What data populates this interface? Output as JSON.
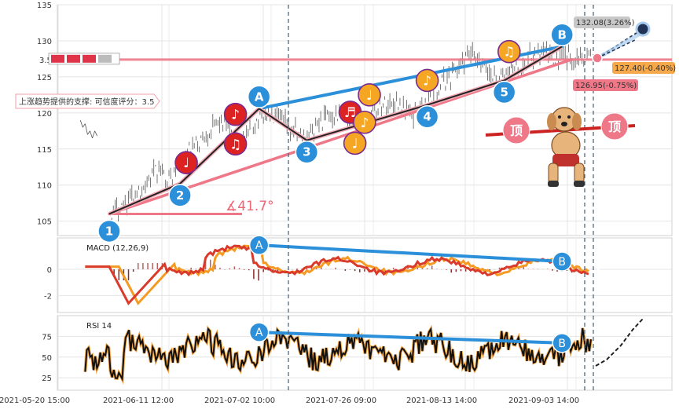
{
  "chart_data": {
    "type": "line",
    "x_tick_labels": [
      "2021-05-20 15:00",
      "2021-06-11 12:00",
      "2021-07-02 10:00",
      "2021-07-26 09:00",
      "2021-08-13 14:00",
      "2021-09-03 14:00"
    ],
    "price_panel": {
      "y_ticks": [
        105,
        110,
        115,
        120,
        125,
        130,
        135
      ],
      "ylim": [
        103,
        135
      ],
      "price_path": [
        [
          0,
          106
        ],
        [
          0.03,
          107.5
        ],
        [
          0.06,
          109
        ],
        [
          0.08,
          110.5
        ],
        [
          0.1,
          112
        ],
        [
          0.13,
          111
        ],
        [
          0.16,
          114
        ],
        [
          0.2,
          117
        ],
        [
          0.23,
          119
        ],
        [
          0.25,
          117
        ],
        [
          0.28,
          116
        ],
        [
          0.3,
          118.5
        ],
        [
          0.32,
          120
        ],
        [
          0.35,
          119
        ],
        [
          0.38,
          117.5
        ],
        [
          0.41,
          116.5
        ],
        [
          0.44,
          119
        ],
        [
          0.47,
          120
        ],
        [
          0.5,
          118
        ],
        [
          0.53,
          119
        ],
        [
          0.56,
          121
        ],
        [
          0.6,
          121.5
        ],
        [
          0.63,
          119.5
        ],
        [
          0.66,
          121.5
        ],
        [
          0.69,
          124
        ],
        [
          0.72,
          126
        ],
        [
          0.75,
          128
        ],
        [
          0.78,
          126
        ],
        [
          0.81,
          124.5
        ],
        [
          0.84,
          126.5
        ],
        [
          0.87,
          127.5
        ],
        [
          0.9,
          128.5
        ],
        [
          0.93,
          127.5
        ],
        [
          1,
          128
        ]
      ],
      "early_fragment": [
        [
          -0.06,
          119
        ],
        [
          -0.055,
          118
        ],
        [
          -0.05,
          118.5
        ],
        [
          -0.045,
          117
        ],
        [
          -0.04,
          117.5
        ],
        [
          -0.035,
          116.5
        ],
        [
          -0.03,
          117.5
        ],
        [
          -0.025,
          116.8
        ]
      ],
      "zigzag": [
        {
          "label": "1",
          "x": 0,
          "y": 106,
          "color": "#2b8fd9"
        },
        {
          "label": "2",
          "x": 0.147,
          "y": 110.2,
          "color": "#2b8fd9"
        },
        {
          "label": "A",
          "x": 0.311,
          "y": 120.6,
          "color": "#2b8fd9"
        },
        {
          "label": "3",
          "x": 0.41,
          "y": 116.2,
          "color": "#2b8fd9"
        },
        {
          "label": "4",
          "x": 0.66,
          "y": 121.1,
          "color": "#2b8fd9"
        },
        {
          "label": "5",
          "x": 0.82,
          "y": 124.5,
          "color": "#2b8fd9"
        },
        {
          "label": "B",
          "x": 0.94,
          "y": 129.2,
          "color": "#2b8fd9"
        }
      ],
      "support_lines": [
        {
          "from": [
            0,
            106
          ],
          "to": [
            0.96,
            127.4
          ],
          "color": "#ee7788"
        },
        {
          "from": [
            0.311,
            120.6
          ],
          "to": [
            0.94,
            129.2
          ],
          "color": "#2b8fd9"
        }
      ],
      "horizontal_level": 127.4,
      "horizontal_label": "3.5",
      "music_markers": [
        {
          "x": 0.16,
          "y": 113.1,
          "color": "#dd2222",
          "glyph": "♩"
        },
        {
          "x": 0.262,
          "y": 119.8,
          "color": "#dd2222",
          "glyph": "♪"
        },
        {
          "x": 0.262,
          "y": 115.7,
          "color": "#dd2222",
          "glyph": "♫"
        },
        {
          "x": 0.5,
          "y": 120.1,
          "color": "#dd2222",
          "glyph": "♬"
        },
        {
          "x": 0.54,
          "y": 122.5,
          "color": "#f5a623",
          "glyph": "♩"
        },
        {
          "x": 0.53,
          "y": 118.7,
          "color": "#f5a623",
          "glyph": "♪"
        },
        {
          "x": 0.51,
          "y": 115.8,
          "color": "#f5a623",
          "glyph": "♩"
        },
        {
          "x": 0.66,
          "y": 124.5,
          "color": "#f5a623",
          "glyph": "♪"
        },
        {
          "x": 0.83,
          "y": 128.5,
          "color": "#f5a623",
          "glyph": "♫"
        }
      ],
      "annotations": {
        "support_text": "上涨趋势提供的支撑: 可信度评分：3.5",
        "angle_text": "∡41.7°",
        "upper_target": "132.08(3.26%)",
        "middle_target": "127.40(-0.40%)",
        "lower_target": "126.95(-0.75%)",
        "top_badge": "顶"
      }
    },
    "macd_panel": {
      "label": "MACD (12,26,9)",
      "y_ticks": [
        -2,
        0
      ],
      "ylim": [
        -3.3,
        2.4
      ],
      "divergence": {
        "from": [
          0.311,
          1.85
        ],
        "to": [
          0.94,
          0.6
        ],
        "labels": [
          "A",
          "B"
        ]
      }
    },
    "rsi_panel": {
      "label": "RSI 14",
      "y_ticks": [
        25,
        50,
        75
      ],
      "ylim": [
        10,
        100
      ],
      "divergence": {
        "from": [
          0.311,
          80
        ],
        "to": [
          0.94,
          67
        ],
        "labels": [
          "A",
          "B"
        ]
      }
    }
  }
}
